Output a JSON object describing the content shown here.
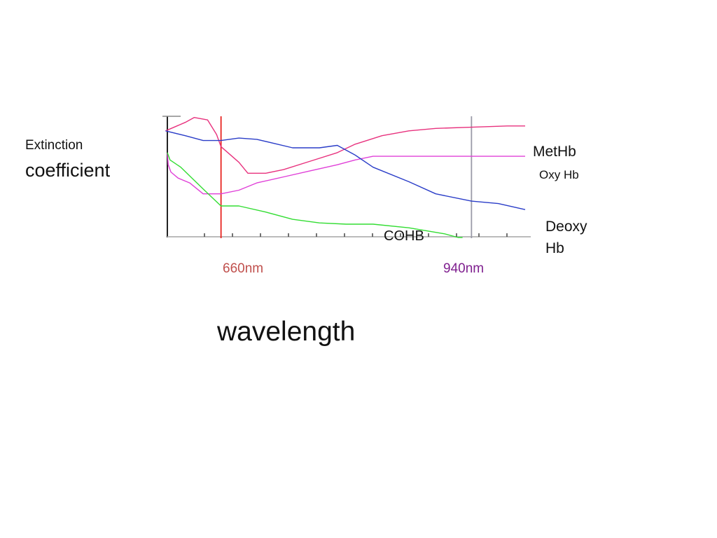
{
  "chart_data": {
    "type": "line",
    "title": "",
    "ylabel_line1": "Extinction",
    "ylabel_line2": "coefficient",
    "xlabel": "wavelength",
    "x_unit": "nm",
    "xlim": [
      600,
      1000
    ],
    "ylim": [
      0,
      1
    ],
    "grid": false,
    "legend": "inline labels at right of plot",
    "markers": [
      {
        "label": "660nm",
        "x": 660,
        "color": "#e8231f",
        "label_color": "#c0504d"
      },
      {
        "label": "940nm",
        "x": 940,
        "color": "#9a9aa8",
        "label_color": "#7f1f8f"
      }
    ],
    "series": [
      {
        "name": "MetHb",
        "color": "#e8327e",
        "x": [
          598,
          620,
          630,
          645,
          655,
          660,
          680,
          690,
          700,
          710,
          730,
          760,
          790,
          810,
          840,
          870,
          900,
          940,
          980,
          1000
        ],
        "y": [
          0.88,
          0.95,
          0.99,
          0.97,
          0.85,
          0.75,
          0.62,
          0.53,
          0.53,
          0.53,
          0.56,
          0.63,
          0.7,
          0.77,
          0.84,
          0.88,
          0.9,
          0.91,
          0.92,
          0.92
        ]
      },
      {
        "name": "Oxy Hb",
        "color": "#e040d8",
        "x": [
          600,
          601,
          604,
          612,
          625,
          640,
          660,
          680,
          700,
          730,
          760,
          790,
          810,
          830,
          870,
          910,
          940,
          960,
          1000
        ],
        "y": [
          0.7,
          0.6,
          0.54,
          0.49,
          0.45,
          0.36,
          0.36,
          0.39,
          0.45,
          0.5,
          0.55,
          0.6,
          0.64,
          0.67,
          0.67,
          0.67,
          0.67,
          0.67,
          0.67
        ]
      },
      {
        "name": "Deoxy Hb",
        "color": "#2a3dc8",
        "x": [
          598,
          620,
          640,
          660,
          680,
          700,
          740,
          770,
          790,
          810,
          830,
          870,
          900,
          940,
          970,
          1000
        ],
        "y": [
          0.88,
          0.84,
          0.8,
          0.8,
          0.82,
          0.81,
          0.74,
          0.74,
          0.76,
          0.68,
          0.58,
          0.46,
          0.36,
          0.3,
          0.28,
          0.23
        ]
      },
      {
        "name": "COHB",
        "color": "#33dd33",
        "x": [
          600,
          603,
          615,
          640,
          660,
          680,
          710,
          740,
          770,
          800,
          830,
          870,
          910,
          925,
          930
        ],
        "y": [
          0.7,
          0.64,
          0.58,
          0.4,
          0.26,
          0.26,
          0.21,
          0.15,
          0.12,
          0.11,
          0.11,
          0.08,
          0.03,
          0.0,
          0.0
        ]
      }
    ]
  }
}
